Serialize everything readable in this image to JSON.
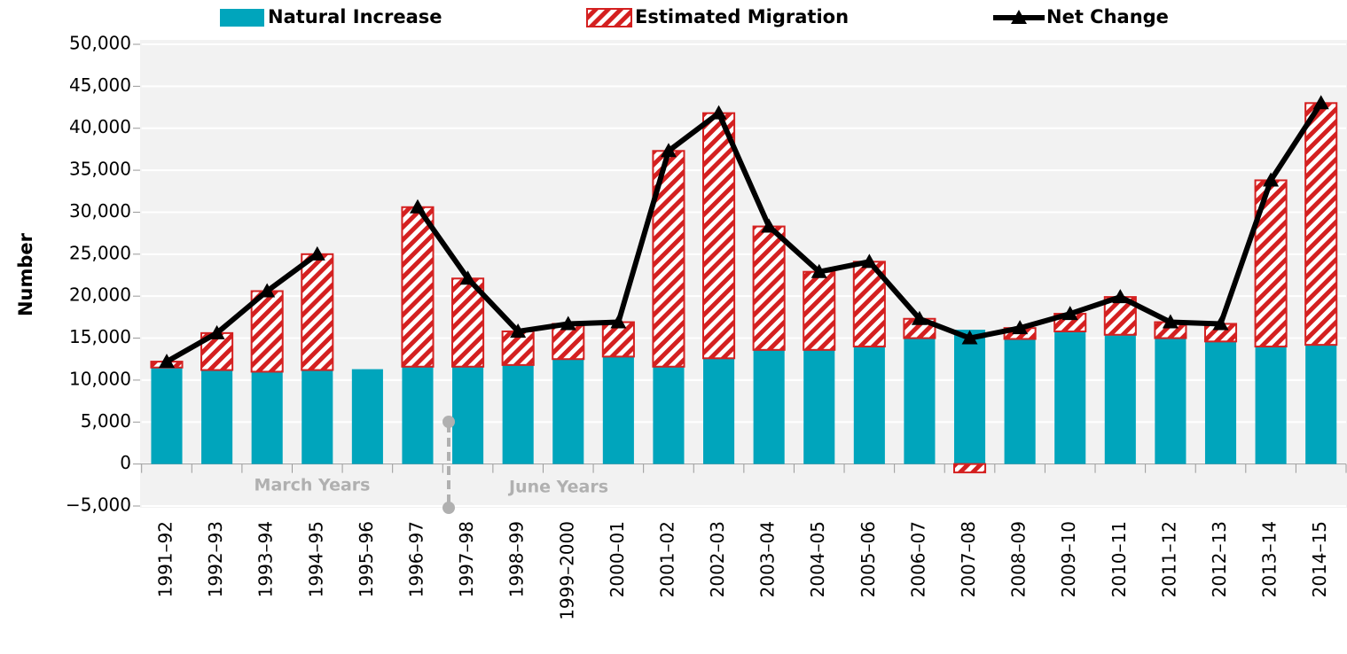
{
  "chart_data": {
    "type": "bar",
    "stacked": true,
    "y_label": "Number",
    "categories": [
      "1991–92",
      "1992–93",
      "1993–94",
      "1994–95",
      "1995–96",
      "1996–97",
      "1997–98",
      "1998–99",
      "1999–2000",
      "2000–01",
      "2001–02",
      "2002–03",
      "2003–04",
      "2004–05",
      "2005–06",
      "2006–07",
      "2007–08",
      "2008–09",
      "2009–10",
      "2010–11",
      "2011–12",
      "2012–13",
      "2013–14",
      "2014–15"
    ],
    "series": [
      {
        "name": "Natural Increase",
        "color": "#00a5bc",
        "type": "bar",
        "values": [
          11500,
          11200,
          11000,
          11200,
          11300,
          11600,
          11600,
          11800,
          12500,
          12800,
          11600,
          12600,
          13600,
          13600,
          14000,
          15000,
          16000,
          14900,
          15800,
          15400,
          15000,
          14600,
          14000,
          14200
        ]
      },
      {
        "name": "Estimated Migration",
        "color": "#d42020",
        "type": "bar",
        "hatch": true,
        "values": [
          700,
          4400,
          9600,
          13800,
          null,
          19000,
          10500,
          4000,
          4200,
          4100,
          25700,
          29200,
          14700,
          9300,
          10100,
          2300,
          -1000,
          1300,
          2100,
          4500,
          1900,
          2100,
          19800,
          28800
        ]
      },
      {
        "name": "Net Change",
        "color": "#000000",
        "type": "line",
        "marker": "triangle",
        "values": [
          12200,
          15600,
          20600,
          25000,
          null,
          30600,
          22100,
          15800,
          16700,
          16900,
          37300,
          41800,
          28300,
          22900,
          24100,
          17300,
          15000,
          16200,
          17900,
          19900,
          16900,
          16700,
          33800,
          43000
        ]
      }
    ],
    "ylim": [
      -5000,
      50000
    ],
    "yticks": [
      {
        "value": -5000,
        "label": "−5,000"
      },
      0,
      {
        "value": 5000,
        "label": "5,000"
      },
      {
        "value": 10000,
        "label": "10,000"
      },
      {
        "value": 15000,
        "label": "15,000"
      },
      {
        "value": 20000,
        "label": "20,000"
      },
      {
        "value": 25000,
        "label": "25,000"
      },
      {
        "value": 30000,
        "label": "30,000"
      },
      {
        "value": 35000,
        "label": "35,000"
      },
      {
        "value": 40000,
        "label": "40,000"
      },
      {
        "value": 45000,
        "label": "45,000"
      },
      {
        "value": 50000,
        "label": "50,000"
      }
    ],
    "grid": true,
    "legend": "top",
    "annotations": [
      "March Years",
      "June Years"
    ]
  }
}
